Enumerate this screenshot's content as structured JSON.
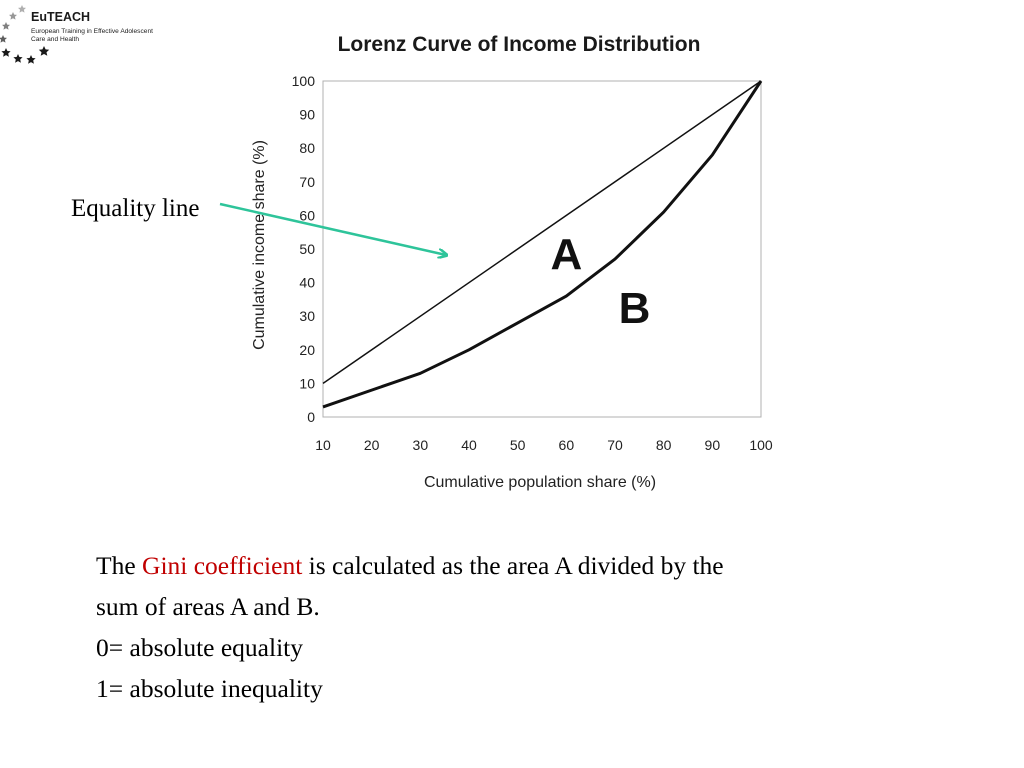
{
  "logo": {
    "title": "EuTEACH",
    "subtitle_line1": "European Training in Effective Adolescent",
    "subtitle_line2": "Care and Health"
  },
  "annotation": {
    "equality_label": "Equality line",
    "arrow_color": "#2ec49a"
  },
  "chart_data": {
    "type": "line",
    "title": "Lorenz Curve of Income Distribution",
    "xlabel": "Cumulative population share (%)",
    "ylabel": "Cumulative income share (%)",
    "xlim": [
      10,
      100
    ],
    "ylim": [
      0,
      100
    ],
    "x_ticks": [
      10,
      20,
      30,
      40,
      50,
      60,
      70,
      80,
      90,
      100
    ],
    "y_ticks": [
      0,
      10,
      20,
      30,
      40,
      50,
      60,
      70,
      80,
      90,
      100
    ],
    "grid": false,
    "series": [
      {
        "role": "equality",
        "x": [
          10,
          100
        ],
        "y": [
          10,
          100
        ]
      },
      {
        "role": "lorenz",
        "x": [
          10,
          20,
          30,
          40,
          50,
          60,
          70,
          80,
          90,
          100
        ],
        "y": [
          3,
          8,
          13,
          20,
          28,
          36,
          47,
          61,
          78,
          100
        ]
      }
    ],
    "region_labels": [
      {
        "text": "A",
        "x": 60,
        "y": 44
      },
      {
        "text": "B",
        "x": 74,
        "y": 28
      }
    ]
  },
  "text": {
    "line1_before": "The ",
    "line1_highlight": "Gini coefficient",
    "line1_after": " is calculated as the area A divided by the",
    "line2": "sum of areas A and B.",
    "line3": "0= absolute equality",
    "line4": "1= absolute inequality",
    "highlight_color": "#c00000"
  }
}
